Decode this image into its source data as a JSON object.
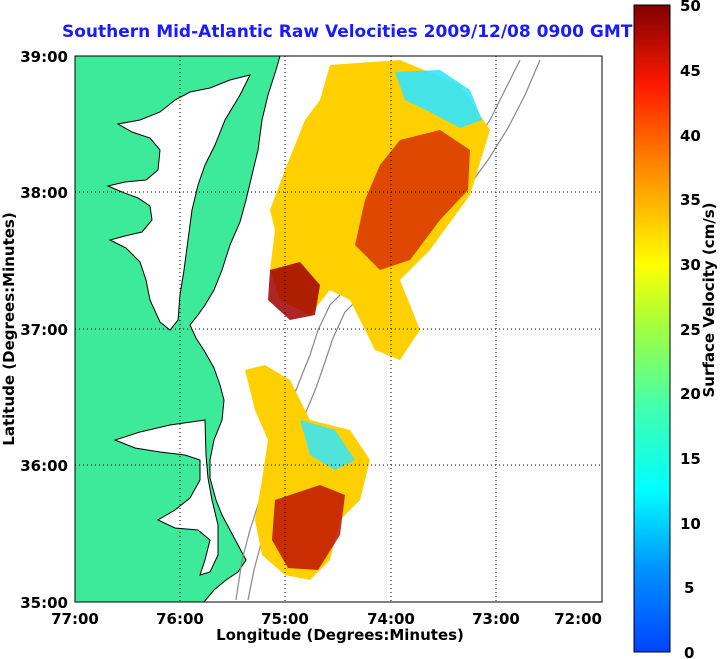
{
  "title": "Southern Mid-Atlantic Raw Velocities 2009/12/08 0900 GMT",
  "xlabel": "Longitude (Degrees:Minutes)",
  "ylabel": "Latitude (Degrees:Minutes)",
  "colorbar_label": "Surface Velocity (cm/s)",
  "x_ticks": [
    "77:00",
    "76:00",
    "75:00",
    "74:00",
    "73:00",
    "72:00"
  ],
  "y_ticks": [
    "39:00",
    "38:00",
    "37:00",
    "36:00",
    "35:00"
  ],
  "colorbar_ticks": [
    "50",
    "45",
    "40",
    "35",
    "30",
    "25",
    "20",
    "15",
    "10",
    "5",
    "0"
  ],
  "chart_data": {
    "type": "map",
    "region": "Southern Mid-Atlantic",
    "date_time": "2009/12/08 0900 GMT",
    "xlim_deg": [
      -77,
      -72
    ],
    "ylim_deg": [
      35,
      39
    ],
    "colorbar_range_cm_s": [
      0,
      50
    ],
    "grid": true,
    "colors": {
      "land": "#3dea9a",
      "coast_line": "#000000",
      "bathymetry": "#888888",
      "title": "#1a1aff"
    }
  }
}
